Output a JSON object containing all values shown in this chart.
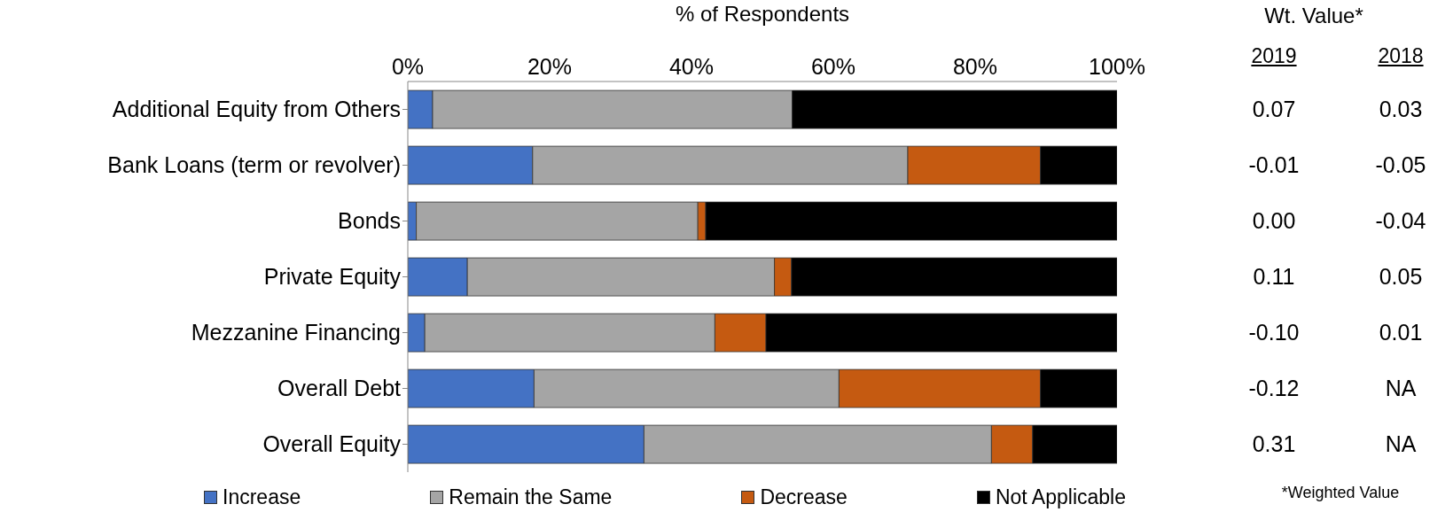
{
  "chart_data": [
    {
      "type": "bar",
      "orientation": "horizontal",
      "stacked": true,
      "xlabel": "% of Respondents",
      "categories": [
        "Additional Equity from Others",
        "Bank Loans (term or revolver)",
        "Bonds",
        "Private Equity",
        "Mezzanine Financing",
        "Overall Debt",
        "Overall Equity"
      ],
      "series": [
        {
          "name": "Increase",
          "color": "#4472c4",
          "values": [
            3.5,
            17.6,
            1.2,
            8.4,
            2.4,
            17.8,
            33.3
          ]
        },
        {
          "name": "Remain the Same",
          "color": "#a5a5a5",
          "values": [
            50.7,
            52.9,
            39.7,
            43.3,
            40.9,
            43.0,
            49.0
          ]
        },
        {
          "name": "Decrease",
          "color": "#c55a11",
          "values": [
            0,
            18.7,
            1.1,
            2.4,
            7.2,
            28.4,
            5.8
          ]
        },
        {
          "name": "Not Applicable",
          "color": "#000000",
          "values": [
            45.8,
            10.8,
            58.0,
            45.9,
            49.5,
            10.8,
            11.9
          ]
        }
      ],
      "xlim": [
        0,
        100
      ],
      "xticks": [
        {
          "value": 0,
          "label": "0%"
        },
        {
          "value": 20,
          "label": "20%"
        },
        {
          "value": 40,
          "label": "40%"
        },
        {
          "value": 60,
          "label": "60%"
        },
        {
          "value": 80,
          "label": "80%"
        },
        {
          "value": 100,
          "label": "100%"
        }
      ],
      "legend": "bottom"
    },
    {
      "type": "other",
      "title": "Wt. Value*",
      "categories": [
        "2019",
        "2018"
      ],
      "cell_labels": [
        [
          "0.07",
          "0.03"
        ],
        [
          "-0.01",
          "-0.05"
        ],
        [
          "0.00",
          "-0.04"
        ],
        [
          "0.11",
          "0.05"
        ],
        [
          "-0.10",
          "0.01"
        ],
        [
          "-0.12",
          "NA"
        ],
        [
          "0.31",
          "NA"
        ]
      ],
      "annotations": [
        "*Weighted Value"
      ]
    }
  ]
}
